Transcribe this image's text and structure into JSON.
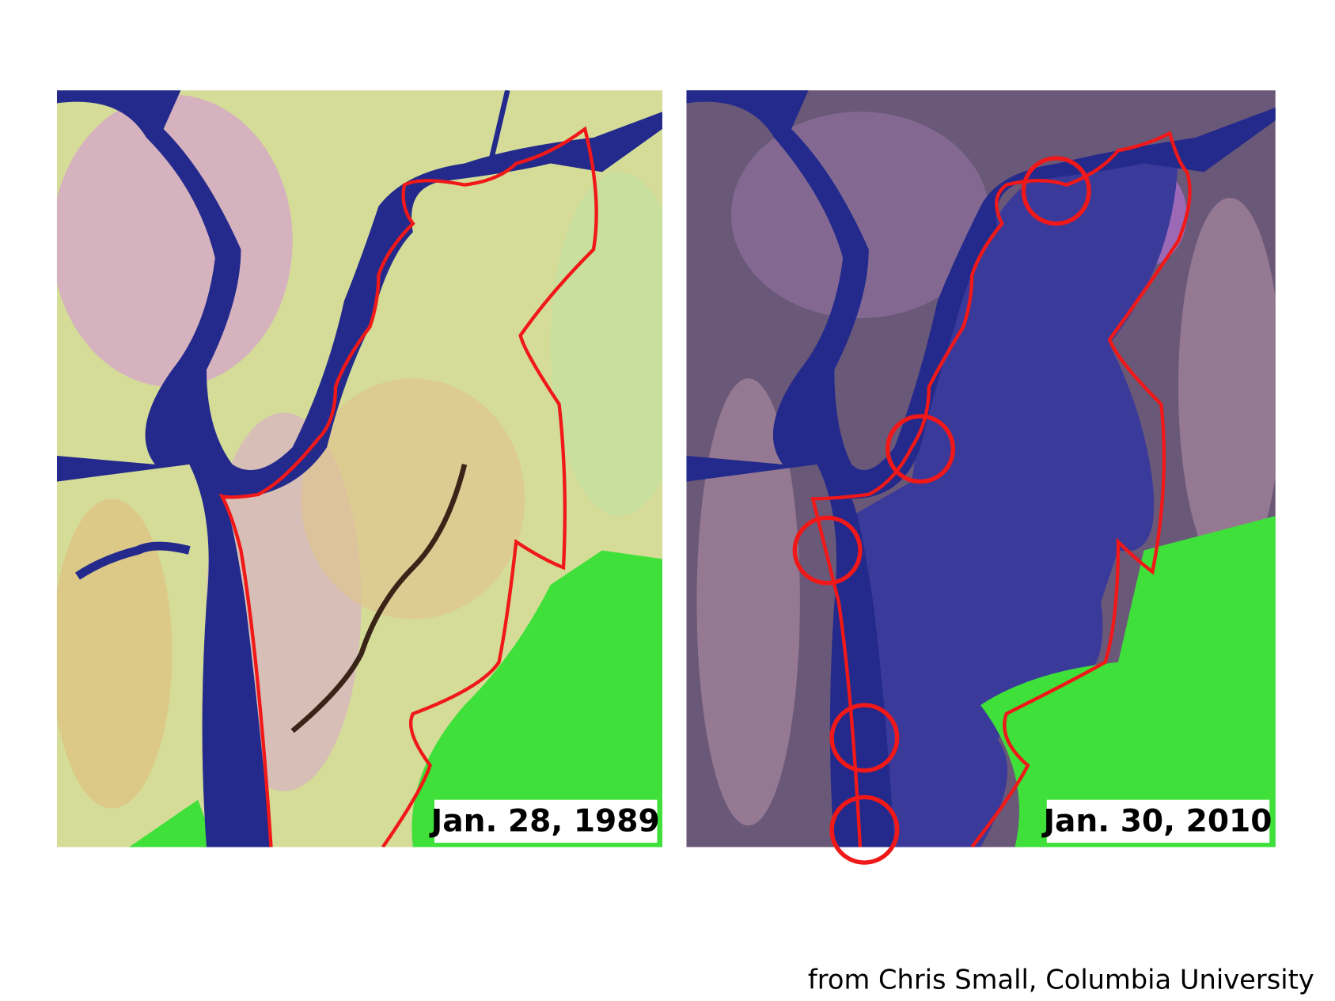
{
  "panels": [
    {
      "label": "Jan. 28, 1989"
    },
    {
      "label": "Jan. 30, 2010"
    }
  ],
  "credit": "from Chris Small, Columbia University"
}
